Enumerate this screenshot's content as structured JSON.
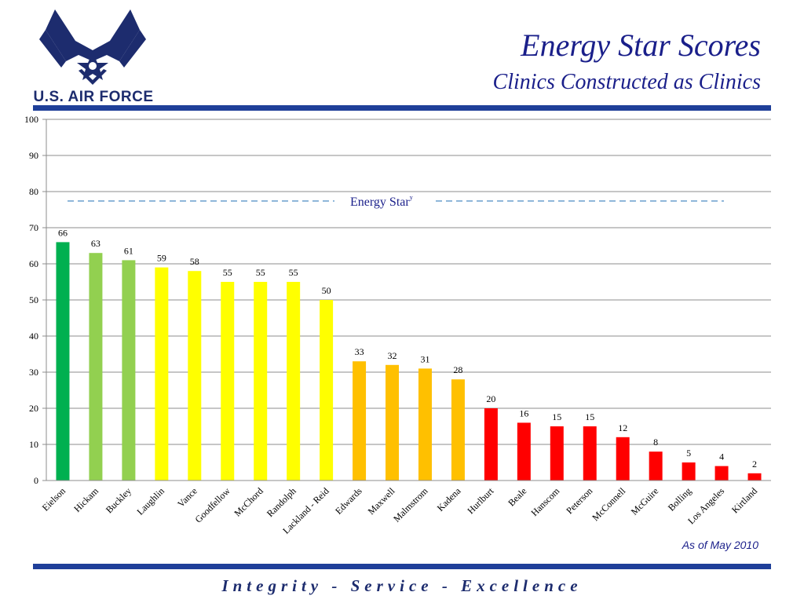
{
  "header": {
    "logo_text": "U.S. AIR FORCE",
    "title": "Energy Star Scores",
    "subtitle": "Clinics Constructed as Clinics"
  },
  "footer": {
    "as_of": "As of May 2010",
    "motto": "Integrity - Service - Excellence"
  },
  "colors": {
    "dark_green": "#00b050",
    "light_green": "#92d050",
    "yellow": "#ffff00",
    "orange": "#ffc000",
    "red": "#ff0000",
    "brand_blue": "#1f3f99",
    "title_blue": "#1a1f8a"
  },
  "chart_data": {
    "type": "bar",
    "categories": [
      "Eielson",
      "Hickam",
      "Buckley",
      "Laughlin",
      "Vance",
      "Goodfellow",
      "McChord",
      "Randolph",
      "Lackland - Reid",
      "Edwards",
      "Maxwell",
      "Malmstrom",
      "Kadena",
      "Hurlburt",
      "Beale",
      "Hanscom",
      "Peterson",
      "McConnell",
      "McGuire",
      "Bolling",
      "Los Angeles",
      "Kirtland"
    ],
    "values": [
      66,
      63,
      61,
      59,
      58,
      55,
      55,
      55,
      50,
      33,
      32,
      31,
      28,
      20,
      16,
      15,
      15,
      12,
      8,
      5,
      4,
      2
    ],
    "bar_colors": [
      "#00b050",
      "#92d050",
      "#92d050",
      "#ffff00",
      "#ffff00",
      "#ffff00",
      "#ffff00",
      "#ffff00",
      "#ffff00",
      "#ffc000",
      "#ffc000",
      "#ffc000",
      "#ffc000",
      "#ff0000",
      "#ff0000",
      "#ff0000",
      "#ff0000",
      "#ff0000",
      "#ff0000",
      "#ff0000",
      "#ff0000",
      "#ff0000"
    ],
    "ylim": [
      0,
      100
    ],
    "yticks": [
      0,
      10,
      20,
      30,
      40,
      50,
      60,
      70,
      80,
      90,
      100
    ],
    "grid": true,
    "reference_line": {
      "value": 75,
      "label": "Energy Star",
      "superscript": "y",
      "style": "dashed",
      "color": "#1f6fb5"
    },
    "title": "",
    "xlabel": "",
    "ylabel": ""
  }
}
